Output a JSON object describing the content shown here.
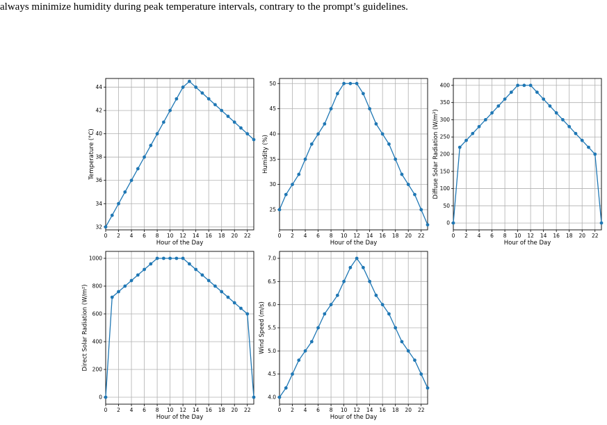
{
  "caption": "always minimize humidity during peak temperature intervals, contrary to the prompt’s guidelines.",
  "colors": {
    "series": "#1f77b4",
    "grid": "#b0b0b0",
    "axis": "#000000"
  },
  "chart_data": [
    {
      "type": "line",
      "xlabel": "Hour of the Day",
      "ylabel": "Temperature (°C)",
      "x": [
        0,
        1,
        2,
        3,
        4,
        5,
        6,
        7,
        8,
        9,
        10,
        11,
        12,
        13,
        14,
        15,
        16,
        17,
        18,
        19,
        20,
        21,
        22,
        23
      ],
      "values": [
        32,
        33,
        34,
        35,
        36,
        37,
        38,
        39,
        40,
        41,
        42,
        43,
        44,
        44.5,
        44,
        43.5,
        43,
        42.5,
        42,
        41.5,
        41,
        40.5,
        40,
        39.5
      ],
      "xlim": [
        0,
        23
      ],
      "ylim": [
        31.75,
        44.75
      ],
      "xticks": [
        0,
        2,
        4,
        6,
        8,
        10,
        12,
        14,
        16,
        18,
        20,
        22
      ],
      "yticks": [
        32,
        34,
        36,
        38,
        40,
        42,
        44
      ],
      "ytick_labels": [
        "32",
        "34",
        "36",
        "38",
        "40",
        "42",
        "44"
      ],
      "grid": true
    },
    {
      "type": "line",
      "xlabel": "Hour of the Day",
      "ylabel": "Humidity (%)",
      "x": [
        0,
        1,
        2,
        3,
        4,
        5,
        6,
        7,
        8,
        9,
        10,
        11,
        12,
        13,
        14,
        15,
        16,
        17,
        18,
        19,
        20,
        21,
        22,
        23
      ],
      "values": [
        25,
        28,
        30,
        32,
        35,
        38,
        40,
        42,
        45,
        48,
        50,
        50,
        50,
        48,
        45,
        42,
        40,
        38,
        35,
        32,
        30,
        28,
        25,
        22
      ],
      "xlim": [
        0,
        23
      ],
      "ylim": [
        21,
        51
      ],
      "xticks": [
        0,
        2,
        4,
        6,
        8,
        10,
        12,
        14,
        16,
        18,
        20,
        22
      ],
      "yticks": [
        25,
        30,
        35,
        40,
        45,
        50
      ],
      "ytick_labels": [
        "25",
        "30",
        "35",
        "40",
        "45",
        "50"
      ],
      "grid": true
    },
    {
      "type": "line",
      "xlabel": "Hour of the Day",
      "ylabel": "Diffuse Solar Radiation (W/m²)",
      "x": [
        0,
        1,
        2,
        3,
        4,
        5,
        6,
        7,
        8,
        9,
        10,
        11,
        12,
        13,
        14,
        15,
        16,
        17,
        18,
        19,
        20,
        21,
        22,
        23
      ],
      "values": [
        0,
        220,
        240,
        260,
        280,
        300,
        320,
        340,
        360,
        380,
        400,
        400,
        400,
        380,
        360,
        340,
        320,
        300,
        280,
        260,
        240,
        220,
        200,
        0
      ],
      "xlim": [
        0,
        23
      ],
      "ylim": [
        -20,
        420
      ],
      "xticks": [
        0,
        2,
        4,
        6,
        8,
        10,
        12,
        14,
        16,
        18,
        20,
        22
      ],
      "yticks": [
        0,
        50,
        100,
        150,
        200,
        250,
        300,
        350,
        400
      ],
      "ytick_labels": [
        "0",
        "50",
        "100",
        "150",
        "200",
        "250",
        "300",
        "350",
        "400"
      ],
      "grid": true
    },
    {
      "type": "line",
      "xlabel": "Hour of the Day",
      "ylabel": "Direct Solar Radiation (W/m²)",
      "x": [
        0,
        1,
        2,
        3,
        4,
        5,
        6,
        7,
        8,
        9,
        10,
        11,
        12,
        13,
        14,
        15,
        16,
        17,
        18,
        19,
        20,
        21,
        22,
        23
      ],
      "values": [
        0,
        720,
        760,
        800,
        840,
        880,
        920,
        960,
        1000,
        1000,
        1000,
        1000,
        1000,
        960,
        920,
        880,
        840,
        800,
        760,
        720,
        680,
        640,
        600,
        0
      ],
      "xlim": [
        0,
        23
      ],
      "ylim": [
        -50,
        1050
      ],
      "xticks": [
        0,
        2,
        4,
        6,
        8,
        10,
        12,
        14,
        16,
        18,
        20,
        22
      ],
      "yticks": [
        0,
        200,
        400,
        600,
        800,
        1000
      ],
      "ytick_labels": [
        "0",
        "200",
        "400",
        "600",
        "800",
        "1000"
      ],
      "grid": true
    },
    {
      "type": "line",
      "xlabel": "Hour of the Day",
      "ylabel": "Wind Speed (m/s)",
      "x": [
        0,
        1,
        2,
        3,
        4,
        5,
        6,
        7,
        8,
        9,
        10,
        11,
        12,
        13,
        14,
        15,
        16,
        17,
        18,
        19,
        20,
        21,
        22,
        23
      ],
      "values": [
        4.0,
        4.2,
        4.5,
        4.8,
        5.0,
        5.2,
        5.5,
        5.8,
        6.0,
        6.2,
        6.5,
        6.8,
        7.0,
        6.8,
        6.5,
        6.2,
        6.0,
        5.8,
        5.5,
        5.2,
        5.0,
        4.8,
        4.5,
        4.2
      ],
      "xlim": [
        0,
        23
      ],
      "ylim": [
        3.85,
        7.15
      ],
      "xticks": [
        0,
        2,
        4,
        6,
        8,
        10,
        12,
        14,
        16,
        18,
        20,
        22
      ],
      "yticks": [
        4.0,
        4.5,
        5.0,
        5.5,
        6.0,
        6.5,
        7.0
      ],
      "ytick_labels": [
        "4.0",
        "4.5",
        "5.0",
        "5.5",
        "6.0",
        "6.5",
        "7.0"
      ],
      "grid": true
    }
  ]
}
